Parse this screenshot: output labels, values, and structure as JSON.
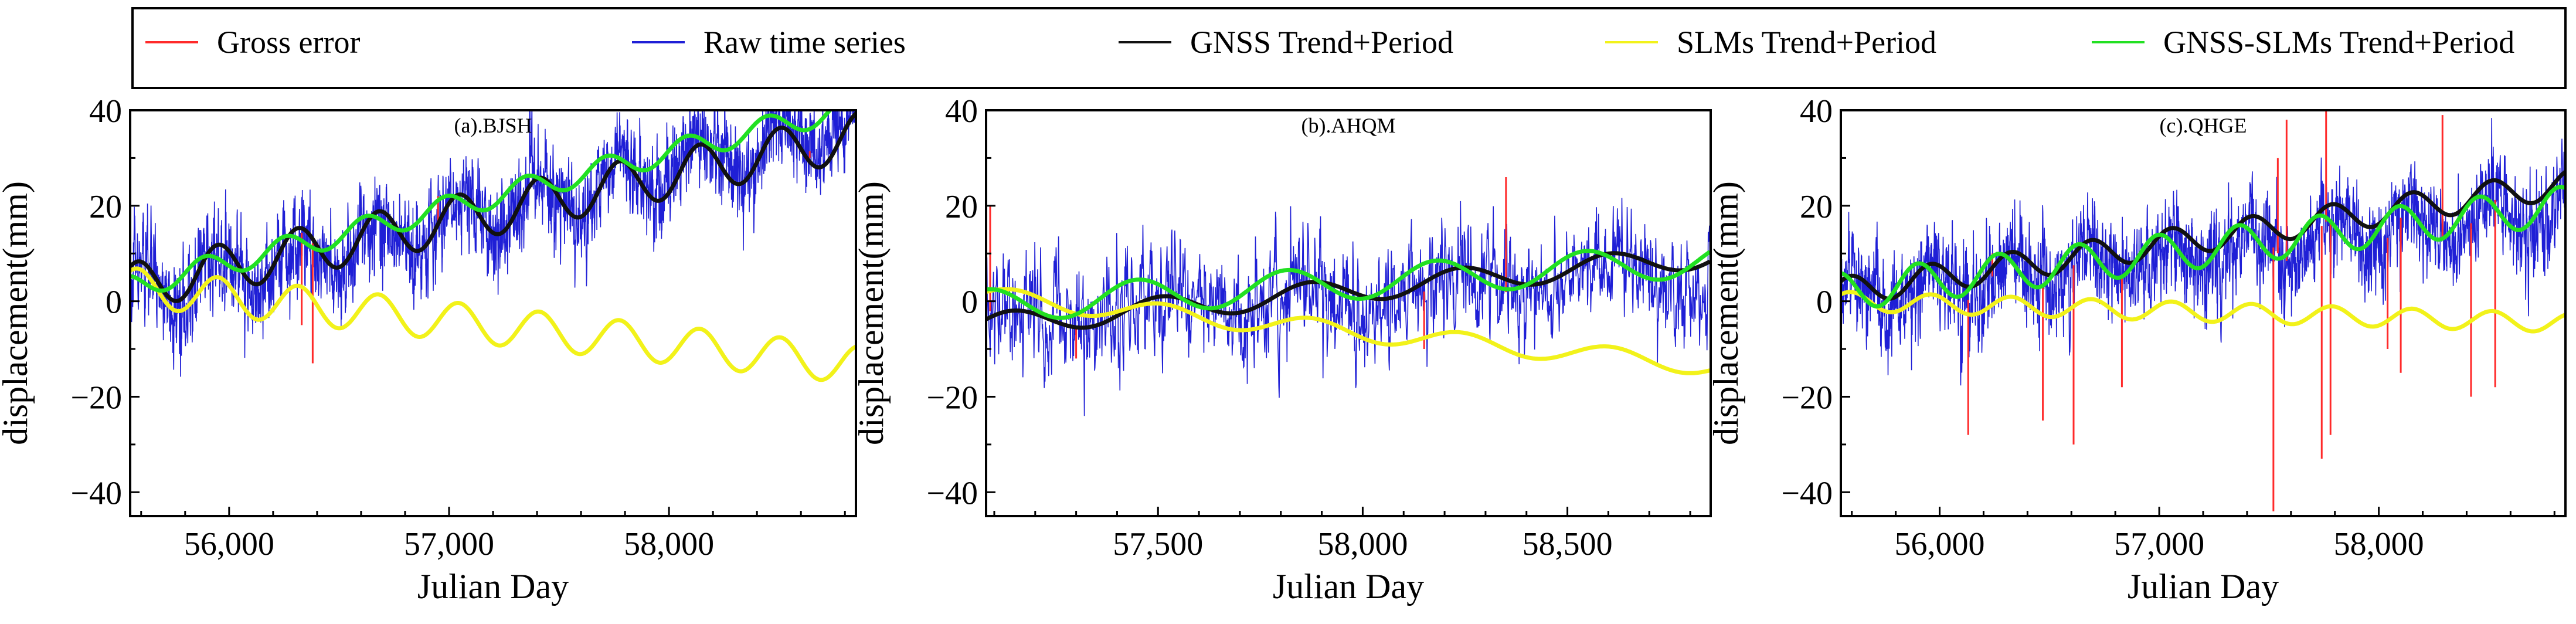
{
  "legend": {
    "placement": "top",
    "items": [
      {
        "label": "Gross error",
        "color": "#ff2a2a"
      },
      {
        "label": "Raw time series",
        "color": "#1f1fd6"
      },
      {
        "label": "GNSS Trend+Period",
        "color": "#111111"
      },
      {
        "label": "SLMs Trend+Period",
        "color": "#f2f21a"
      },
      {
        "label": "GNSS-SLMs Trend+Period",
        "color": "#22e022"
      }
    ]
  },
  "chart_data": [
    {
      "type": "line",
      "title": "(a).BJSH",
      "xlabel": "Julian Day",
      "ylabel": "displacement(mm)",
      "xlim": [
        55550,
        58850
      ],
      "ylim": [
        -45,
        40
      ],
      "xticks": [
        56000,
        57000,
        58000
      ],
      "xtick_labels": [
        "56,000",
        "57,000",
        "58,000"
      ],
      "yticks": [
        -40,
        -20,
        0,
        20,
        40
      ],
      "ytick_labels": [
        "−40",
        "−20",
        "0",
        "20",
        "40"
      ],
      "series": [
        {
          "name": "Raw time series",
          "model": {
            "offset": 1,
            "slope": 4.0,
            "amp": 5,
            "phase": 1.0,
            "noise": 6,
            "spike": 0.35
          }
        },
        {
          "name": "Gross error",
          "points": [
            [
              56380,
              -13
            ],
            [
              56330,
              -5
            ],
            [
              56950,
              22
            ],
            [
              58640,
              30
            ]
          ]
        },
        {
          "name": "GNSS Trend+Period",
          "model": {
            "offset": 3,
            "slope": 3.5,
            "amp": 5,
            "phase": 1.0
          }
        },
        {
          "name": "SLMs Trend+Period",
          "model": {
            "offset": 3,
            "slope": -1.8,
            "amp": 4,
            "phase": 1.0
          }
        },
        {
          "name": "GNSS-SLMs Trend+Period",
          "model": {
            "offset": 3,
            "slope": 4.2,
            "amp": 2.5,
            "phase": 2.0
          }
        }
      ]
    },
    {
      "type": "line",
      "title": "(b).AHQM",
      "xlabel": "Julian Day",
      "ylabel": "displacement(mm)",
      "xlim": [
        57080,
        58850
      ],
      "ylim": [
        -45,
        40
      ],
      "xticks": [
        57500,
        58000,
        58500
      ],
      "xtick_labels": [
        "57,500",
        "58,000",
        "58,500"
      ],
      "yticks": [
        -40,
        -20,
        0,
        20,
        40
      ],
      "ytick_labels": [
        "−40",
        "−20",
        "0",
        "20",
        "40"
      ],
      "series": [
        {
          "name": "Raw time series",
          "model": {
            "offset": -4,
            "slope": 2.0,
            "amp": 3,
            "phase": 0.5,
            "noise": 7,
            "spike": 0.4
          }
        },
        {
          "name": "Gross error",
          "points": [
            [
              57090,
              20
            ],
            [
              58350,
              26
            ],
            [
              57300,
              -12
            ],
            [
              58150,
              -10
            ]
          ]
        },
        {
          "name": "GNSS Trend+Period",
          "model": {
            "offset": -5,
            "slope": 3.0,
            "amp": 2.5,
            "phase": 0.5
          }
        },
        {
          "name": "SLMs Trend+Period",
          "model": {
            "offset": 1,
            "slope": -3.0,
            "amp": 2,
            "phase": 0.5
          }
        },
        {
          "name": "GNSS-SLMs Trend+Period",
          "model": {
            "offset": -1,
            "slope": 2.0,
            "amp": 3.5,
            "phase": 1.5
          }
        }
      ]
    },
    {
      "type": "line",
      "title": "(c).QHGE",
      "xlabel": "Julian Day",
      "ylabel": "displacement(mm)",
      "xlim": [
        55550,
        58850
      ],
      "ylim": [
        -45,
        40
      ],
      "xticks": [
        56000,
        57000,
        58000
      ],
      "xtick_labels": [
        "56,000",
        "57,000",
        "58,000"
      ],
      "yticks": [
        -40,
        -20,
        0,
        20,
        40
      ],
      "ytick_labels": [
        "−40",
        "−20",
        "0",
        "20",
        "40"
      ],
      "series": [
        {
          "name": "Raw time series",
          "model": {
            "offset": 1,
            "slope": 2.0,
            "amp": 4,
            "phase": 0.8,
            "noise": 6,
            "spike": 0.3
          }
        },
        {
          "name": "Gross error",
          "points": [
            [
              56130,
              -28
            ],
            [
              56240,
              10
            ],
            [
              56470,
              -25
            ],
            [
              56610,
              -30
            ],
            [
              56830,
              -18
            ],
            [
              57520,
              -44
            ],
            [
              57580,
              38
            ],
            [
              57740,
              -33
            ],
            [
              57760,
              40
            ],
            [
              57780,
              -28
            ],
            [
              58100,
              -15
            ],
            [
              58290,
              39
            ],
            [
              58420,
              -20
            ],
            [
              58530,
              -18
            ],
            [
              58040,
              -10
            ],
            [
              57540,
              30
            ]
          ]
        },
        {
          "name": "GNSS Trend+Period",
          "model": {
            "offset": 2,
            "slope": 2.5,
            "amp": 3,
            "phase": 0.8
          }
        },
        {
          "name": "SLMs Trend+Period",
          "model": {
            "offset": 0,
            "slope": -0.5,
            "amp": 2,
            "phase": 0.8
          }
        },
        {
          "name": "GNSS-SLMs Trend+Period",
          "model": {
            "offset": 2,
            "slope": 2.0,
            "amp": 4,
            "phase": 1.8
          }
        }
      ]
    }
  ]
}
